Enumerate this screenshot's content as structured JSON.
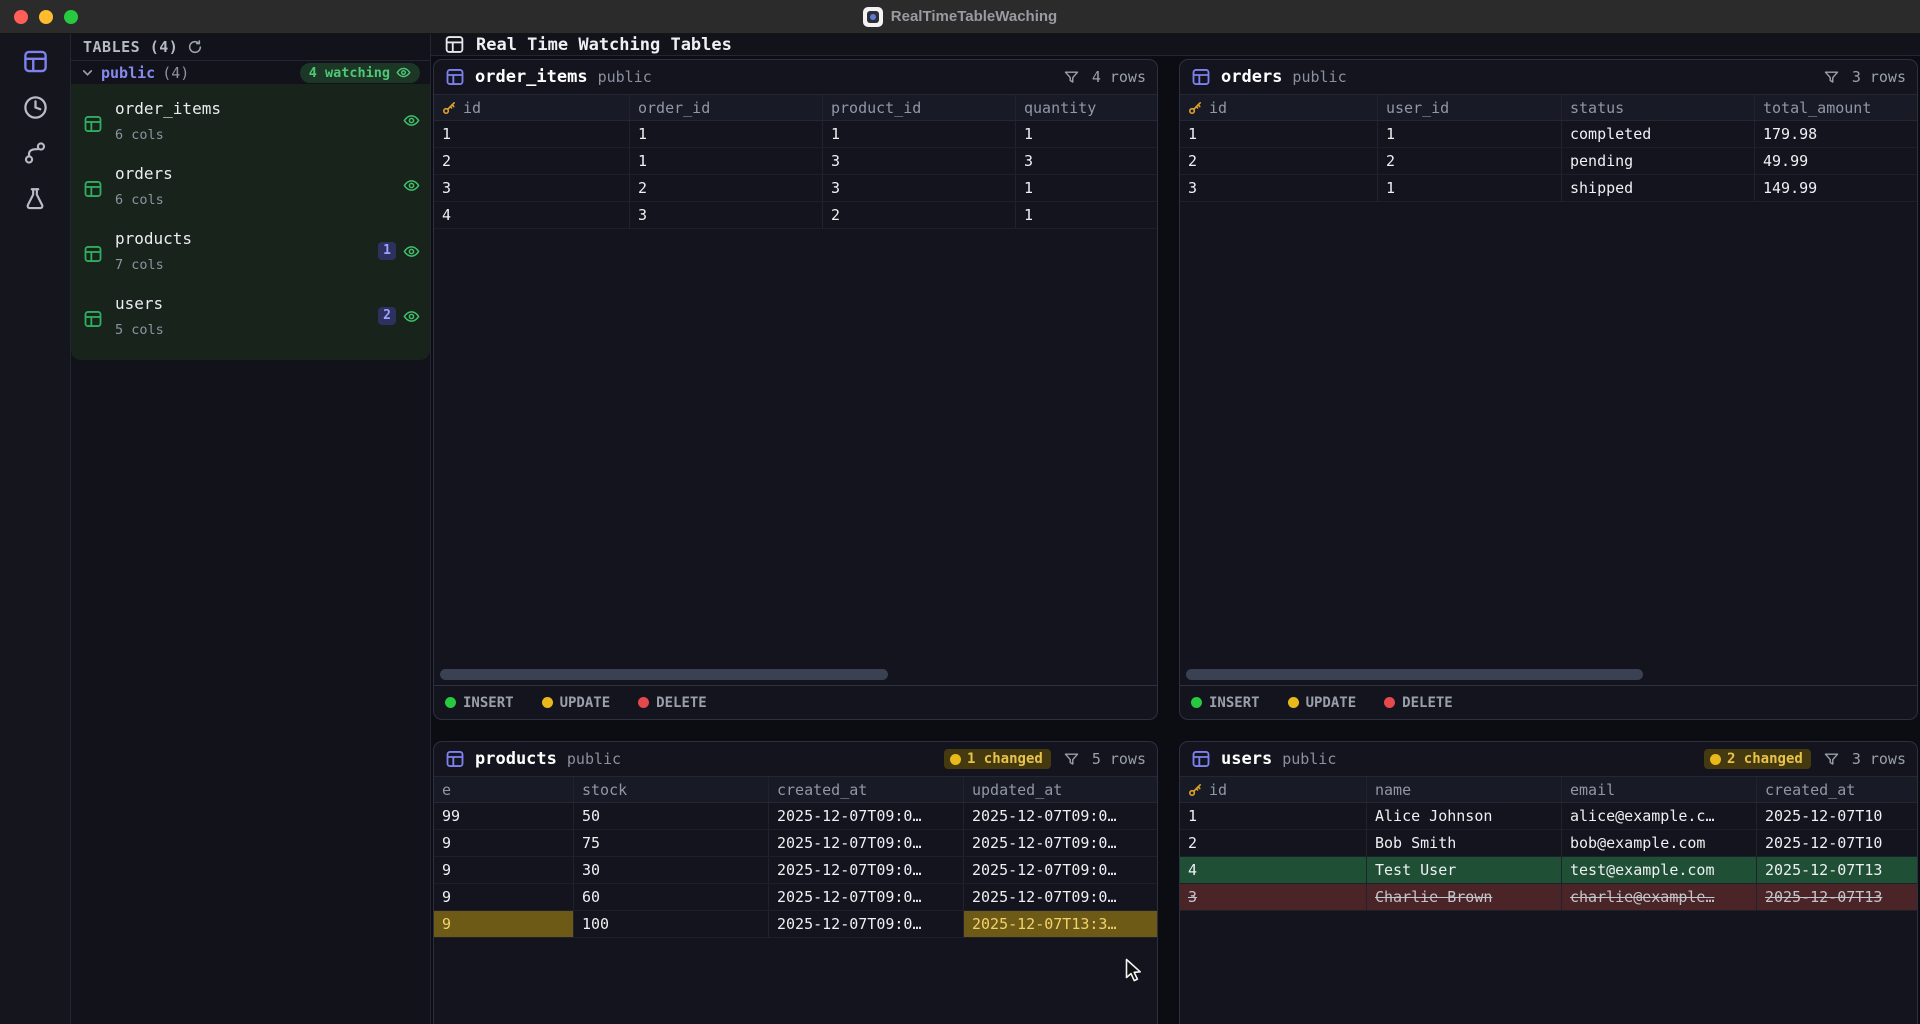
{
  "window": {
    "title": "RealTimeTableWaching"
  },
  "rail": {
    "items": [
      {
        "name": "tables",
        "active": true
      },
      {
        "name": "history",
        "active": false
      },
      {
        "name": "branches",
        "active": false
      },
      {
        "name": "experiments",
        "active": false
      }
    ]
  },
  "sidebar": {
    "title": "TABLES (4)",
    "schema": {
      "name": "public",
      "count": "(4)",
      "watching_pill": "4 watching"
    },
    "tables": [
      {
        "name": "order_items",
        "cols": "6 cols",
        "badge": ""
      },
      {
        "name": "orders",
        "cols": "6 cols",
        "badge": ""
      },
      {
        "name": "products",
        "cols": "7 cols",
        "badge": "1"
      },
      {
        "name": "users",
        "cols": "5 cols",
        "badge": "2"
      }
    ]
  },
  "main": {
    "title": "Real Time Watching Tables",
    "legend": {
      "insert": "INSERT",
      "update": "UPDATE",
      "delete": "DELETE"
    }
  },
  "panels": [
    {
      "title": "order_items",
      "schema": "public",
      "rows_label": "4 rows",
      "changed_label": "",
      "columns": [
        {
          "label": "id",
          "key": true
        },
        {
          "label": "order_id",
          "key": false
        },
        {
          "label": "product_id",
          "key": false
        },
        {
          "label": "quantity",
          "key": false
        }
      ],
      "rows": [
        {
          "cells": [
            "1",
            "1",
            "1",
            "1"
          ],
          "state": "normal",
          "hl": []
        },
        {
          "cells": [
            "2",
            "1",
            "3",
            "3"
          ],
          "state": "normal",
          "hl": []
        },
        {
          "cells": [
            "3",
            "2",
            "3",
            "1"
          ],
          "state": "normal",
          "hl": []
        },
        {
          "cells": [
            "4",
            "3",
            "2",
            "1"
          ],
          "state": "normal",
          "hl": []
        }
      ]
    },
    {
      "title": "orders",
      "schema": "public",
      "rows_label": "3 rows",
      "changed_label": "",
      "columns": [
        {
          "label": "id",
          "key": true
        },
        {
          "label": "user_id",
          "key": false
        },
        {
          "label": "status",
          "key": false
        },
        {
          "label": "total_amount",
          "key": false
        }
      ],
      "rows": [
        {
          "cells": [
            "1",
            "1",
            "completed",
            "179.98"
          ],
          "state": "normal",
          "hl": []
        },
        {
          "cells": [
            "2",
            "2",
            "pending",
            "49.99"
          ],
          "state": "normal",
          "hl": []
        },
        {
          "cells": [
            "3",
            "1",
            "shipped",
            "149.99"
          ],
          "state": "normal",
          "hl": []
        }
      ]
    },
    {
      "title": "products",
      "schema": "public",
      "rows_label": "5 rows",
      "changed_label": "1 changed",
      "columns": [
        {
          "label": "e",
          "key": false
        },
        {
          "label": "stock",
          "key": false
        },
        {
          "label": "created_at",
          "key": false
        },
        {
          "label": "updated_at",
          "key": false
        }
      ],
      "rows": [
        {
          "cells": [
            "99",
            "50",
            "2025-12-07T09:0…",
            "2025-12-07T09:0…"
          ],
          "state": "normal",
          "hl": []
        },
        {
          "cells": [
            "9",
            "75",
            "2025-12-07T09:0…",
            "2025-12-07T09:0…"
          ],
          "state": "normal",
          "hl": []
        },
        {
          "cells": [
            "9",
            "30",
            "2025-12-07T09:0…",
            "2025-12-07T09:0…"
          ],
          "state": "normal",
          "hl": []
        },
        {
          "cells": [
            "9",
            "60",
            "2025-12-07T09:0…",
            "2025-12-07T09:0…"
          ],
          "state": "normal",
          "hl": []
        },
        {
          "cells": [
            "9",
            "100",
            "2025-12-07T09:0…",
            "2025-12-07T13:3…"
          ],
          "state": "normal",
          "hl": [
            0,
            3
          ]
        }
      ]
    },
    {
      "title": "users",
      "schema": "public",
      "rows_label": "3 rows",
      "changed_label": "2 changed",
      "columns": [
        {
          "label": "id",
          "key": true
        },
        {
          "label": "name",
          "key": false
        },
        {
          "label": "email",
          "key": false
        },
        {
          "label": "created_at",
          "key": false
        }
      ],
      "rows": [
        {
          "cells": [
            "1",
            "Alice Johnson",
            "alice@example.c…",
            "2025-12-07T10"
          ],
          "state": "normal",
          "hl": []
        },
        {
          "cells": [
            "2",
            "Bob Smith",
            "bob@example.com",
            "2025-12-07T10"
          ],
          "state": "normal",
          "hl": []
        },
        {
          "cells": [
            "4",
            "Test User",
            "test@example.com",
            "2025-12-07T13"
          ],
          "state": "inserted",
          "hl": []
        },
        {
          "cells": [
            "3",
            "Charlie Brown",
            "charlie@example…",
            "2025-12-07T13"
          ],
          "state": "deleted",
          "hl": []
        }
      ]
    }
  ],
  "colors": {
    "accent_purple": "#7d82f0",
    "table_green": "#2fae5f",
    "insert_dot": "#27c93f",
    "update_dot": "#e7b416",
    "delete_dot": "#e5484d",
    "inserted_row_bg": "#1f4f35",
    "deleted_row_bg": "#4a2426",
    "changed_cell_bg": "#6e5a17",
    "changed_cell_text": "#f2d36a"
  }
}
